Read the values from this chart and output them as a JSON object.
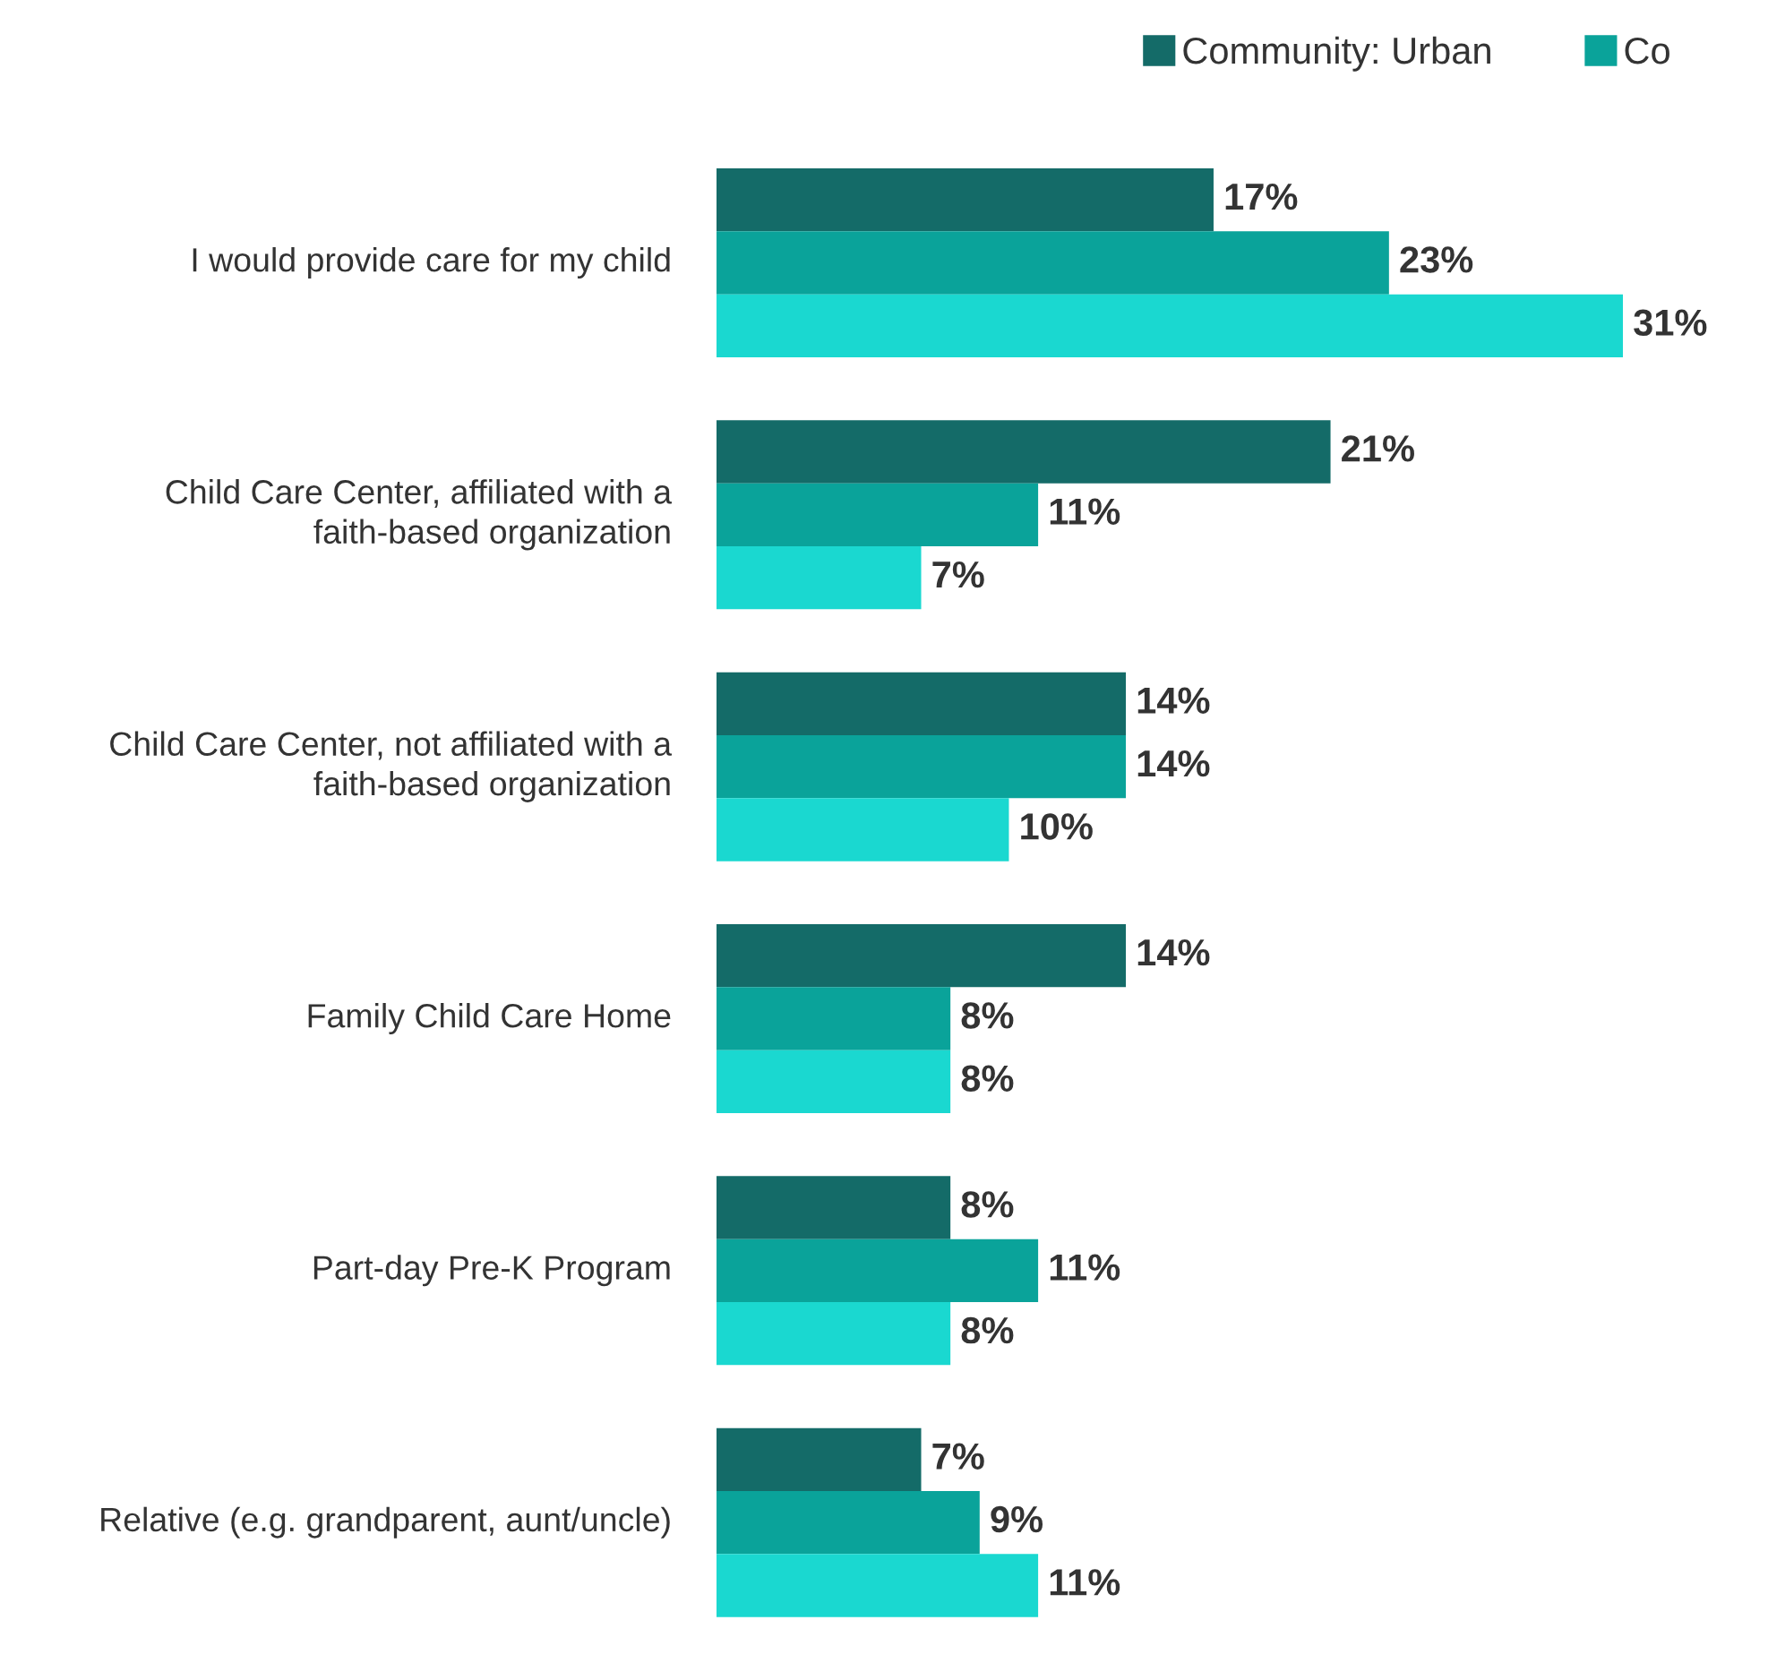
{
  "chart_data": {
    "type": "bar",
    "orientation": "horizontal",
    "legend": "top right",
    "grid": false,
    "categories": [
      "I would provide care for my child",
      "Child Care Center, affiliated with a faith-based organization",
      "Child Care Center, not affiliated with a faith-based organization",
      "Family Child Care Home",
      "Part-day Pre-K Program",
      "Relative (e.g. grandparent, aunt/uncle)"
    ],
    "series": [
      {
        "name": "Community: Urban",
        "color": "#146b68",
        "values": [
          17,
          21,
          14,
          14,
          8,
          7
        ],
        "value_labels": [
          "17%",
          "21%",
          "14%",
          "14%",
          "8%",
          "7%"
        ]
      },
      {
        "name": "Co",
        "color": "#0aa39a",
        "values": [
          23,
          11,
          14,
          8,
          11,
          9
        ],
        "value_labels": [
          "23%",
          "11%",
          "14%",
          "8%",
          "11%",
          "9%"
        ]
      },
      {
        "color": "#1ad8d0",
        "values": [
          31,
          7,
          10,
          8,
          8,
          11
        ],
        "value_labels": [
          "31%",
          "7%",
          "10%",
          "8%",
          "8%",
          "11%"
        ]
      }
    ]
  }
}
